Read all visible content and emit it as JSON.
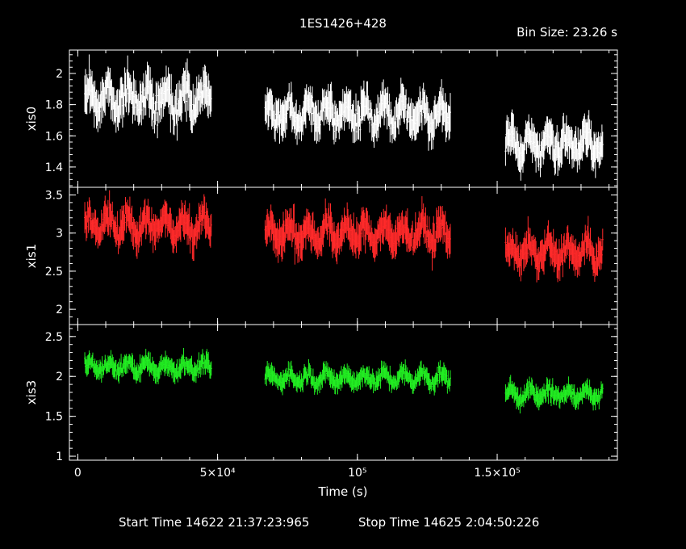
{
  "header": {
    "title": "1ES1426+428",
    "bin_size": "Bin Size: 23.26 s"
  },
  "footer": {
    "start_time": "Start Time 14622 21:37:23:965",
    "stop_time": "Stop Time 14625  2:04:50:226"
  },
  "colors": {
    "background": "#000000",
    "axes": "#ffffff",
    "xis0": "#ffffff",
    "xis1": "#ff2a2a",
    "xis3": "#22ee22"
  },
  "chart_data": {
    "type": "scatter",
    "title": "1ES1426+428",
    "xlabel": "Time (s)",
    "xlim": [
      -3000,
      193000
    ],
    "x_ticks": [
      {
        "value": 0,
        "label": "0"
      },
      {
        "value": 50000,
        "label": "5×10⁴"
      },
      {
        "value": 100000,
        "label": "10⁵"
      },
      {
        "value": 150000,
        "label": "1.5×10⁵"
      }
    ],
    "panels": [
      {
        "name": "xis0",
        "ylabel": "xis0",
        "ylim": [
          1.27,
          2.15
        ],
        "y_ticks": [
          {
            "value": 1.4,
            "label": "1.4"
          },
          {
            "value": 1.6,
            "label": "1.6"
          },
          {
            "value": 1.8,
            "label": "1.8"
          },
          {
            "value": 2.0,
            "label": "2"
          }
        ],
        "segments": [
          {
            "x_start": 2500,
            "x_end": 48000,
            "mean": 1.84,
            "amplitude": 0.09
          },
          {
            "x_start": 67000,
            "x_end": 133500,
            "mean": 1.74,
            "amplitude": 0.08
          },
          {
            "x_start": 153000,
            "x_end": 188000,
            "mean": 1.55,
            "amplitude": 0.08
          }
        ]
      },
      {
        "name": "xis1",
        "ylabel": "xis1",
        "ylim": [
          1.8,
          3.6
        ],
        "y_ticks": [
          {
            "value": 2.0,
            "label": "2"
          },
          {
            "value": 2.5,
            "label": "2.5"
          },
          {
            "value": 3.0,
            "label": "3"
          },
          {
            "value": 3.5,
            "label": "3.5"
          }
        ],
        "segments": [
          {
            "x_start": 2500,
            "x_end": 48000,
            "mean": 3.1,
            "amplitude": 0.15
          },
          {
            "x_start": 67000,
            "x_end": 133500,
            "mean": 3.0,
            "amplitude": 0.15
          },
          {
            "x_start": 153000,
            "x_end": 188000,
            "mean": 2.75,
            "amplitude": 0.14
          }
        ]
      },
      {
        "name": "xis3",
        "ylabel": "xis3",
        "ylim": [
          0.95,
          2.65
        ],
        "y_ticks": [
          {
            "value": 1.0,
            "label": "1"
          },
          {
            "value": 1.5,
            "label": "1.5"
          },
          {
            "value": 2.0,
            "label": "2"
          },
          {
            "value": 2.5,
            "label": "2.5"
          }
        ],
        "segments": [
          {
            "x_start": 2500,
            "x_end": 48000,
            "mean": 2.12,
            "amplitude": 0.08
          },
          {
            "x_start": 67000,
            "x_end": 133500,
            "mean": 1.98,
            "amplitude": 0.08
          },
          {
            "x_start": 153000,
            "x_end": 188000,
            "mean": 1.78,
            "amplitude": 0.08
          }
        ]
      }
    ]
  }
}
